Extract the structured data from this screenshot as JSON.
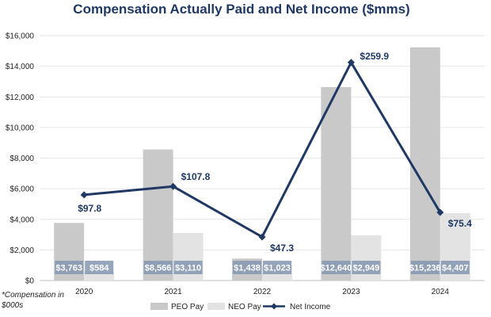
{
  "chart_data": {
    "type": "bar",
    "title": "Compensation Actually Paid and Net Income ($mms)",
    "categories": [
      "2020",
      "2021",
      "2022",
      "2023",
      "2024"
    ],
    "ylim": [
      0,
      16000
    ],
    "yticks": [
      0,
      2000,
      4000,
      6000,
      8000,
      10000,
      12000,
      14000,
      16000
    ],
    "ytick_labels": [
      "$0",
      "$2,000",
      "$4,000",
      "$6,000",
      "$8,000",
      "$10,000",
      "$12,000",
      "$14,000",
      "$16,000"
    ],
    "series": [
      {
        "name": "PEO Pay",
        "type": "bar",
        "color": "#c9c9c9",
        "values": [
          3763,
          8566,
          1438,
          12640,
          15236
        ],
        "labels": [
          "$3,763",
          "$8,566",
          "$1,438",
          "$12,640",
          "$15,236"
        ]
      },
      {
        "name": "NEO Pay",
        "type": "bar",
        "color": "#e3e3e3",
        "values": [
          584,
          3110,
          1023,
          2949,
          4407
        ],
        "labels": [
          "$584",
          "$3,110",
          "$1,023",
          "$2,949",
          "$4,407"
        ]
      },
      {
        "name": "Net Income",
        "type": "line",
        "color": "#1f3864",
        "plotted_values": [
          5600,
          6150,
          2850,
          14250,
          4450
        ],
        "labels": [
          "$97.8",
          "$107.8",
          "$47.3",
          "$259.9",
          "$75.4"
        ]
      }
    ],
    "note": "*Compensation in $000s",
    "legend_position": "bottom"
  }
}
